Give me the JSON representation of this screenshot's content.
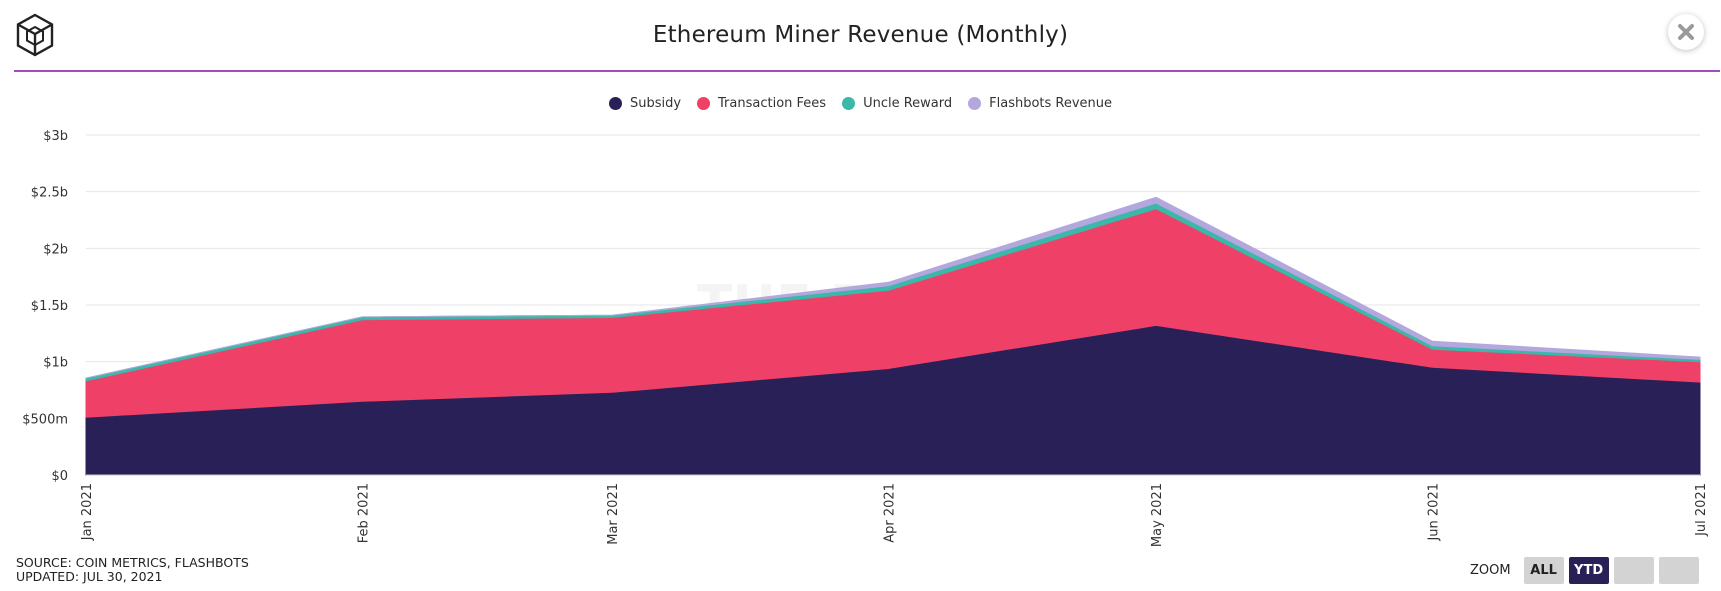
{
  "header": {
    "title": "Ethereum Miner Revenue (Monthly)",
    "logo_icon": "the-block-cube-logo",
    "close_icon": "close-x-icon"
  },
  "footer": {
    "source": "SOURCE: COIN METRICS, FLASHBOTS",
    "updated": "UPDATED: JUL 30, 2021"
  },
  "zoom": {
    "label": "ZOOM",
    "buttons": [
      {
        "label": "ALL",
        "active": false
      },
      {
        "label": "YTD",
        "active": true
      },
      {
        "label": "",
        "active": false
      },
      {
        "label": "",
        "active": false
      }
    ]
  },
  "watermark": "THE BLOCK",
  "colors": {
    "accent": "#a24bbf",
    "subsidy": "#2a2058",
    "transaction_fees": "#ef4168",
    "uncle_reward": "#3ab8a9",
    "flashbots_revenue": "#b4a7dd",
    "grid": "#e6e6e6"
  },
  "chart_data": {
    "type": "area",
    "stacked": true,
    "title": "Ethereum Miner Revenue (Monthly)",
    "categories": [
      "Jan 2021",
      "Feb 2021",
      "Mar 2021",
      "Apr 2021",
      "May 2021",
      "Jun 2021",
      "Jul 2021"
    ],
    "x_day_of_year": [
      1,
      32,
      60,
      91,
      121,
      152,
      182
    ],
    "y_ticks": [
      "$0",
      "$500m",
      "$1b",
      "$1.5b",
      "$2b",
      "$2.5b",
      "$3b"
    ],
    "ylim": [
      0,
      3000000000
    ],
    "grid": true,
    "legend_position": "top-center",
    "series": [
      {
        "name": "Subsidy",
        "color": "#2a2058",
        "values": [
          510000000,
          650000000,
          730000000,
          940000000,
          1320000000,
          950000000,
          820000000
        ]
      },
      {
        "name": "Transaction Fees",
        "color": "#ef4168",
        "values": [
          320000000,
          720000000,
          660000000,
          690000000,
          1030000000,
          160000000,
          180000000
        ]
      },
      {
        "name": "Uncle Reward",
        "color": "#3ab8a9",
        "values": [
          25000000,
          25000000,
          20000000,
          40000000,
          50000000,
          30000000,
          20000000
        ]
      },
      {
        "name": "Flashbots Revenue",
        "color": "#b4a7dd",
        "values": [
          0,
          0,
          0,
          30000000,
          50000000,
          40000000,
          20000000
        ]
      }
    ]
  }
}
